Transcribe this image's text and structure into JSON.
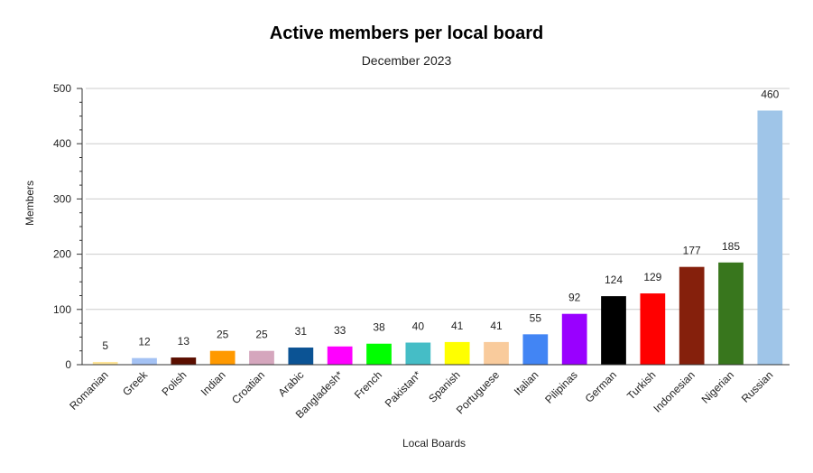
{
  "chart_data": {
    "type": "bar",
    "title": "Active members per local board",
    "subtitle": "December 2023",
    "xlabel": "Local Boards",
    "ylabel": "Members",
    "ylim": [
      0,
      500
    ],
    "yticks": [
      0,
      100,
      200,
      300,
      400,
      500
    ],
    "grid": true,
    "categories": [
      "Romanian",
      "Greek",
      "Polish",
      "Indian",
      "Croatian",
      "Arabic",
      "Bangladesh*",
      "French",
      "Pakistan*",
      "Spanish",
      "Portuguese",
      "Italian",
      "Pilipinas",
      "German",
      "Turkish",
      "Indonesian",
      "Nigerian",
      "Russian"
    ],
    "values": [
      5,
      12,
      13,
      25,
      25,
      31,
      33,
      38,
      40,
      41,
      41,
      55,
      92,
      124,
      129,
      177,
      185,
      460
    ],
    "colors": [
      "#ffe599",
      "#a4c2f4",
      "#5b0f00",
      "#ff9900",
      "#d5a6bd",
      "#0b5394",
      "#ff00ff",
      "#00ff00",
      "#45bdc6",
      "#ffff00",
      "#f9cb9c",
      "#4285f4",
      "#9900ff",
      "#000000",
      "#ff0000",
      "#85200c",
      "#38761d",
      "#9fc5e8"
    ]
  }
}
